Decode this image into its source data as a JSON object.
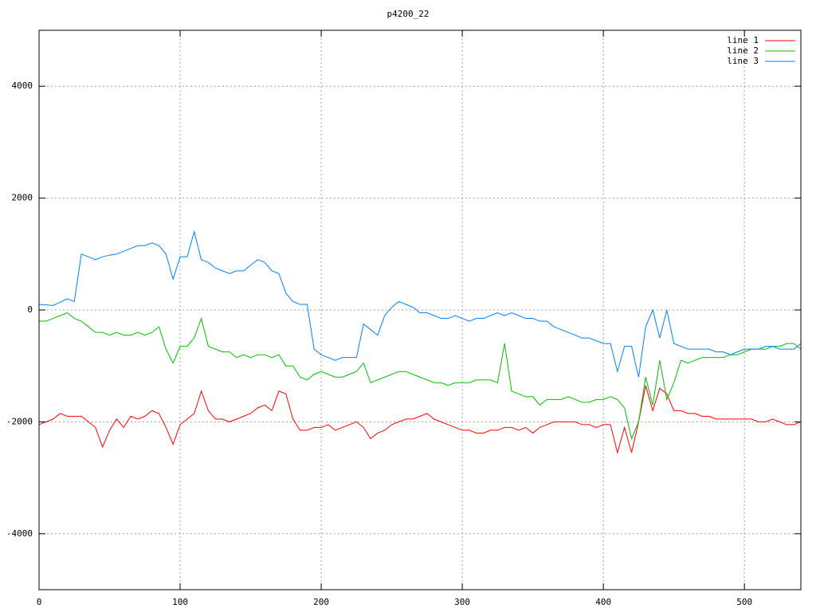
{
  "chart_data": {
    "type": "line",
    "title": "p4200_22",
    "x": [
      0,
      5,
      10,
      15,
      20,
      25,
      30,
      35,
      40,
      45,
      50,
      55,
      60,
      65,
      70,
      75,
      80,
      85,
      90,
      95,
      100,
      105,
      110,
      115,
      120,
      125,
      130,
      135,
      140,
      145,
      150,
      155,
      160,
      165,
      170,
      175,
      180,
      185,
      190,
      195,
      200,
      205,
      210,
      215,
      220,
      225,
      230,
      235,
      240,
      245,
      250,
      255,
      260,
      265,
      270,
      275,
      280,
      285,
      290,
      295,
      300,
      305,
      310,
      315,
      320,
      325,
      330,
      335,
      340,
      345,
      350,
      355,
      360,
      365,
      370,
      375,
      380,
      385,
      390,
      395,
      400,
      405,
      410,
      415,
      420,
      425,
      430,
      435,
      440,
      445,
      450,
      455,
      460,
      465,
      470,
      475,
      480,
      485,
      490,
      495,
      500,
      505,
      510,
      515,
      520,
      525,
      530,
      535,
      540
    ],
    "series": [
      {
        "name": "line 1",
        "color": "#ff0000",
        "values": [
          -2050,
          -2000,
          -1950,
          -1850,
          -1900,
          -1900,
          -1900,
          -2000,
          -2100,
          -2450,
          -2150,
          -1950,
          -2100,
          -1900,
          -1950,
          -1900,
          -1800,
          -1850,
          -2100,
          -2400,
          -2050,
          -1950,
          -1850,
          -1450,
          -1800,
          -1950,
          -1950,
          -2000,
          -1950,
          -1900,
          -1850,
          -1750,
          -1700,
          -1800,
          -1450,
          -1500,
          -1950,
          -2150,
          -2150,
          -2100,
          -2100,
          -2050,
          -2150,
          -2100,
          -2050,
          -2000,
          -2100,
          -2300,
          -2200,
          -2150,
          -2050,
          -2000,
          -1950,
          -1950,
          -1900,
          -1850,
          -1950,
          -2000,
          -2050,
          -2100,
          -2150,
          -2150,
          -2200,
          -2200,
          -2150,
          -2150,
          -2100,
          -2100,
          -2150,
          -2100,
          -2200,
          -2100,
          -2050,
          -2000,
          -2000,
          -2000,
          -2000,
          -2050,
          -2050,
          -2100,
          -2050,
          -2050,
          -2550,
          -2100,
          -2550,
          -2000,
          -1350,
          -1800,
          -1400,
          -1500,
          -1800,
          -1800,
          -1850,
          -1850,
          -1900,
          -1900,
          -1950,
          -1950,
          -1950,
          -1950,
          -1950,
          -1950,
          -2000,
          -2000,
          -1950,
          -2000,
          -2050,
          -2050,
          -2000
        ]
      },
      {
        "name": "line 2",
        "color": "#00c000",
        "values": [
          -200,
          -200,
          -150,
          -100,
          -50,
          -150,
          -200,
          -300,
          -400,
          -400,
          -450,
          -400,
          -450,
          -450,
          -400,
          -450,
          -400,
          -300,
          -700,
          -950,
          -650,
          -650,
          -500,
          -150,
          -650,
          -700,
          -750,
          -750,
          -850,
          -800,
          -850,
          -800,
          -800,
          -850,
          -800,
          -1000,
          -1000,
          -1200,
          -1250,
          -1150,
          -1100,
          -1150,
          -1200,
          -1200,
          -1150,
          -1100,
          -950,
          -1300,
          -1250,
          -1200,
          -1150,
          -1100,
          -1100,
          -1150,
          -1200,
          -1250,
          -1300,
          -1300,
          -1350,
          -1300,
          -1300,
          -1300,
          -1250,
          -1250,
          -1250,
          -1300,
          -600,
          -1450,
          -1500,
          -1550,
          -1550,
          -1700,
          -1600,
          -1600,
          -1600,
          -1550,
          -1600,
          -1650,
          -1650,
          -1600,
          -1600,
          -1550,
          -1600,
          -1750,
          -2300,
          -2000,
          -1200,
          -1700,
          -900,
          -1600,
          -1300,
          -900,
          -950,
          -900,
          -850,
          -850,
          -850,
          -850,
          -800,
          -800,
          -750,
          -700,
          -700,
          -700,
          -650,
          -650,
          -600,
          -600,
          -700
        ]
      },
      {
        "name": "line 3",
        "color": "#0080ff",
        "values": [
          100,
          90,
          80,
          140,
          200,
          150,
          1000,
          950,
          900,
          950,
          980,
          1000,
          1050,
          1100,
          1150,
          1150,
          1200,
          1150,
          1000,
          550,
          950,
          950,
          1400,
          900,
          850,
          750,
          700,
          650,
          700,
          700,
          800,
          900,
          850,
          700,
          650,
          300,
          150,
          100,
          100,
          -700,
          -800,
          -850,
          -900,
          -850,
          -850,
          -850,
          -250,
          -350,
          -450,
          -100,
          50,
          150,
          100,
          50,
          -50,
          -50,
          -100,
          -150,
          -150,
          -100,
          -150,
          -200,
          -150,
          -150,
          -100,
          -50,
          -100,
          -50,
          -100,
          -150,
          -150,
          -200,
          -200,
          -300,
          -350,
          -400,
          -450,
          -500,
          -500,
          -550,
          -600,
          -600,
          -1100,
          -650,
          -650,
          -1200,
          -300,
          0,
          -500,
          0,
          -600,
          -650,
          -700,
          -700,
          -700,
          -700,
          -750,
          -750,
          -800,
          -750,
          -700,
          -700,
          -700,
          -650,
          -650,
          -700,
          -700,
          -700,
          -600
        ]
      }
    ],
    "xlim": [
      0,
      540
    ],
    "xticks": [
      0,
      100,
      200,
      300,
      400,
      500
    ],
    "ylim": [
      -5000,
      5000
    ],
    "yticks": [
      -4000,
      -2000,
      0,
      2000,
      4000
    ],
    "grid": true,
    "legend": "top-right"
  }
}
